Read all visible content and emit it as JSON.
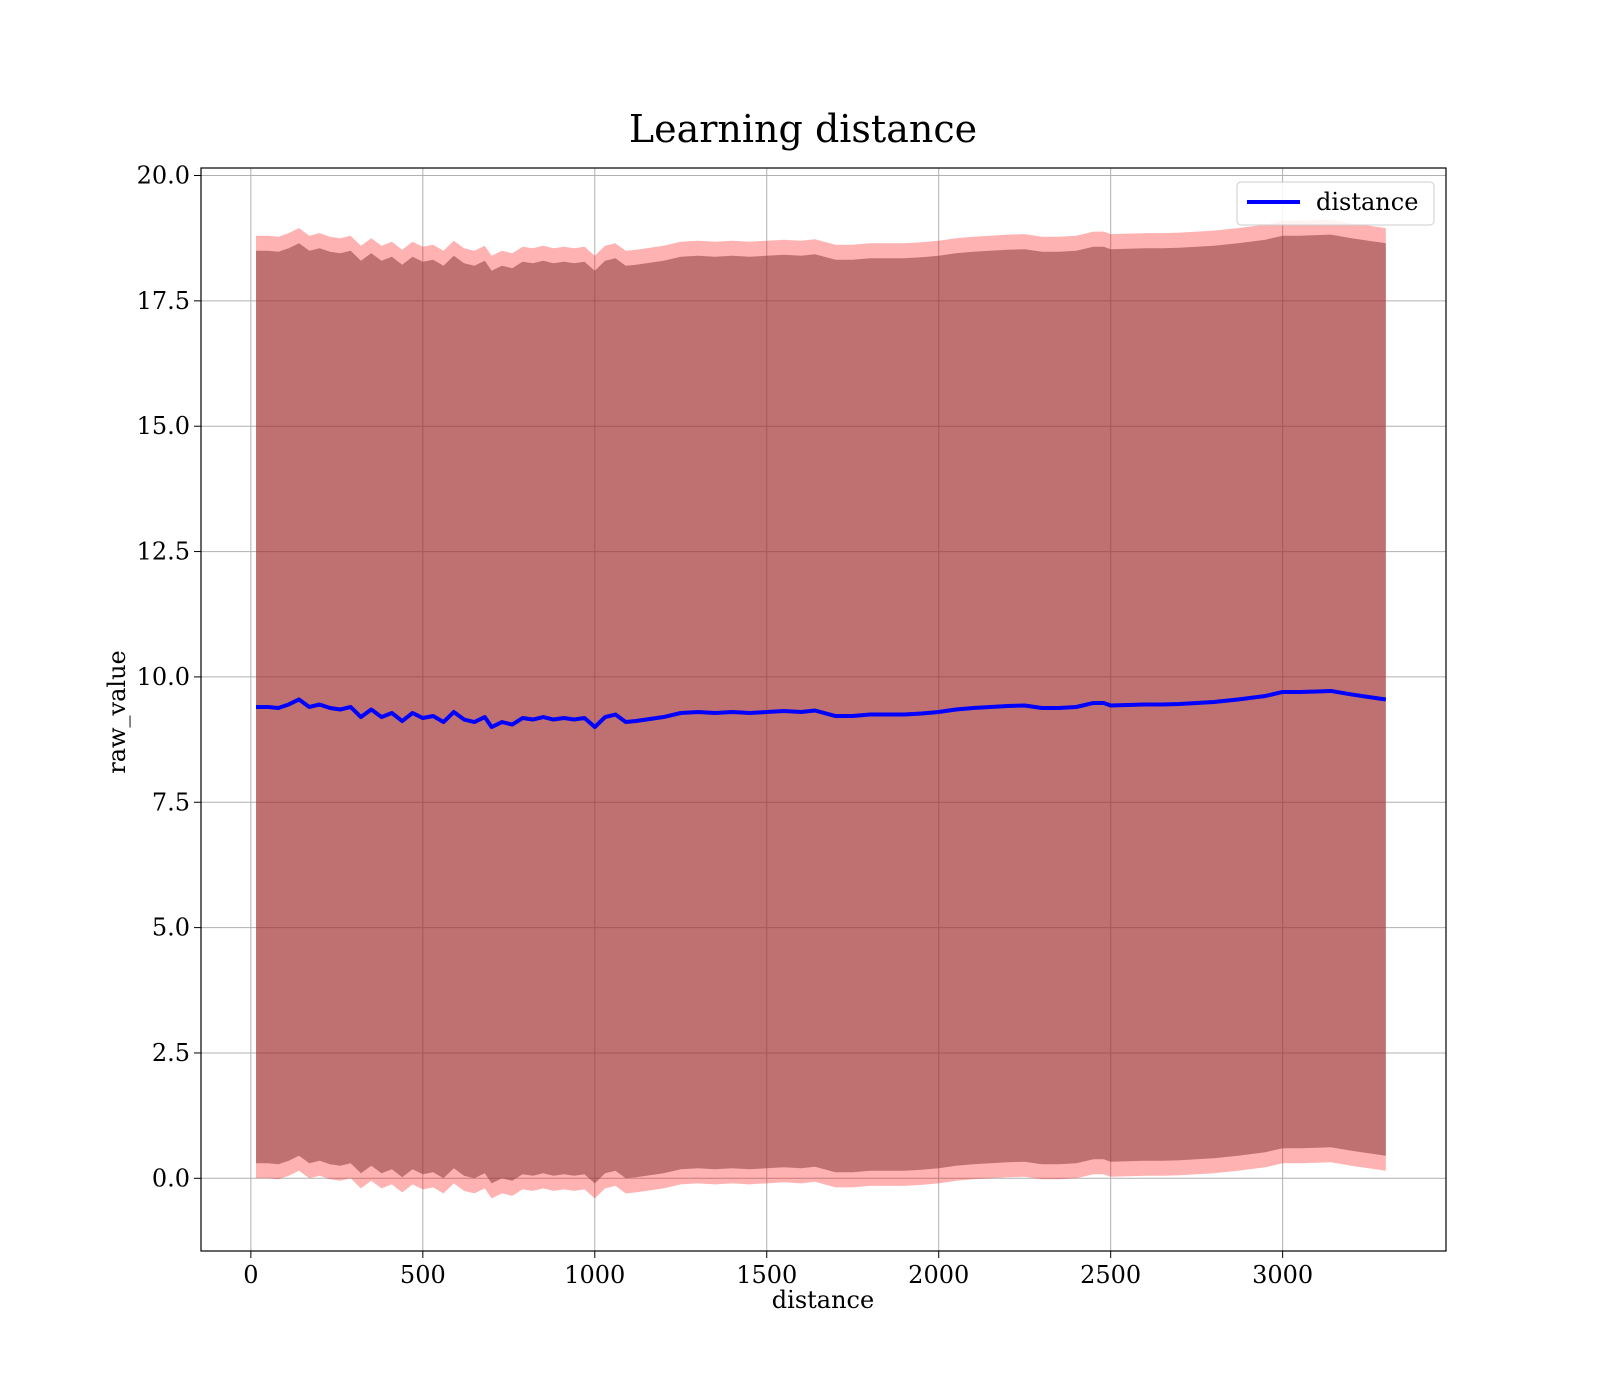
{
  "chart_data": {
    "type": "line",
    "title": "Learning distance",
    "xlabel": "distance",
    "ylabel": "raw_value",
    "xlim": [
      -145,
      3475
    ],
    "ylim": [
      -1.45,
      20.15
    ],
    "xticks": [
      0,
      500,
      1000,
      1500,
      2000,
      2500,
      3000
    ],
    "xtick_labels": [
      "0",
      "500",
      "1000",
      "1500",
      "2000",
      "2500",
      "3000"
    ],
    "yticks": [
      0,
      2.5,
      5,
      7.5,
      10,
      12.5,
      15,
      17.5,
      20
    ],
    "ytick_labels": [
      "0.0",
      "2.5",
      "5.0",
      "7.5",
      "10.0",
      "12.5",
      "15.0",
      "17.5",
      "20.0"
    ],
    "grid": true,
    "legend_position": "upper-right",
    "series": [
      {
        "name": "distance",
        "color": "#0000ff",
        "x": [
          15,
          50,
          80,
          110,
          140,
          170,
          200,
          230,
          260,
          290,
          320,
          350,
          380,
          410,
          440,
          470,
          500,
          530,
          560,
          590,
          620,
          650,
          680,
          700,
          730,
          760,
          790,
          820,
          850,
          880,
          910,
          940,
          970,
          1000,
          1030,
          1060,
          1090,
          1120,
          1150,
          1200,
          1250,
          1300,
          1350,
          1400,
          1450,
          1500,
          1550,
          1600,
          1640,
          1700,
          1750,
          1800,
          1850,
          1900,
          1950,
          2000,
          2050,
          2100,
          2150,
          2200,
          2250,
          2300,
          2350,
          2400,
          2450,
          2480,
          2500,
          2550,
          2600,
          2650,
          2700,
          2750,
          2800,
          2870,
          2950,
          3000,
          3050,
          3100,
          3140,
          3200,
          3250,
          3300
        ],
        "values": [
          9.4,
          9.4,
          9.38,
          9.45,
          9.55,
          9.4,
          9.45,
          9.38,
          9.35,
          9.4,
          9.2,
          9.35,
          9.2,
          9.28,
          9.12,
          9.28,
          9.18,
          9.22,
          9.1,
          9.3,
          9.15,
          9.1,
          9.2,
          9.0,
          9.1,
          9.05,
          9.18,
          9.15,
          9.2,
          9.15,
          9.18,
          9.15,
          9.18,
          9.0,
          9.2,
          9.25,
          9.1,
          9.12,
          9.15,
          9.2,
          9.28,
          9.3,
          9.28,
          9.3,
          9.28,
          9.3,
          9.32,
          9.3,
          9.33,
          9.22,
          9.22,
          9.25,
          9.25,
          9.25,
          9.27,
          9.3,
          9.35,
          9.38,
          9.4,
          9.42,
          9.43,
          9.38,
          9.38,
          9.4,
          9.48,
          9.48,
          9.43,
          9.44,
          9.45,
          9.45,
          9.46,
          9.48,
          9.5,
          9.55,
          9.62,
          9.7,
          9.7,
          9.71,
          9.72,
          9.65,
          9.6,
          9.55
        ]
      }
    ],
    "bands": [
      {
        "color": "#ff0000",
        "opacity": 0.3,
        "half_width": 9.4
      },
      {
        "color": "#8b3a3a",
        "opacity": 0.55,
        "half_width": 9.1
      }
    ]
  }
}
